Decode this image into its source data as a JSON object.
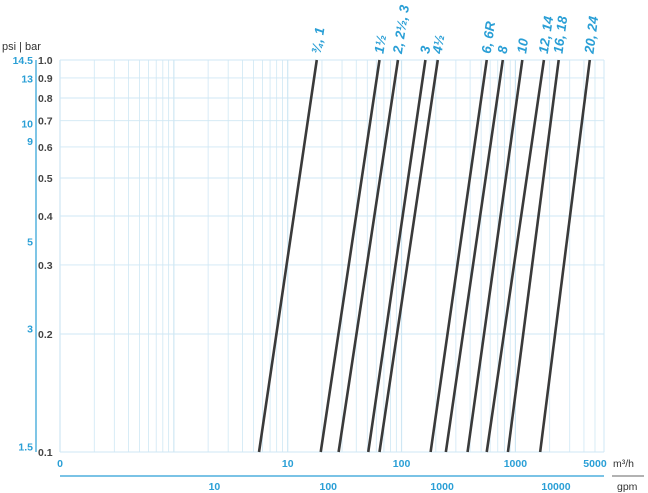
{
  "chart_data": {
    "type": "line",
    "title": "",
    "axis_corner_label": "psi | bar",
    "y_scale": "log",
    "x_scale": "log",
    "ylim_bar": [
      0.1,
      1.0
    ],
    "xlim_m3h": [
      0.1,
      6000
    ],
    "grid": true,
    "colors": {
      "accent": "#2a9fd6",
      "grid": "#cfe7f4",
      "series": "#3a3a3a"
    },
    "y_bar_ticks": [
      {
        "label": "1.0",
        "value": 1.0
      },
      {
        "label": "0.9",
        "value": 0.9
      },
      {
        "label": "0.8",
        "value": 0.8
      },
      {
        "label": "0.7",
        "value": 0.7
      },
      {
        "label": "0.6",
        "value": 0.6
      },
      {
        "label": "0.5",
        "value": 0.5
      },
      {
        "label": "0.4",
        "value": 0.4
      },
      {
        "label": "0.3",
        "value": 0.3
      },
      {
        "label": "0.2",
        "value": 0.2
      },
      {
        "label": "0.1",
        "value": 0.1
      }
    ],
    "y_psi_ticks": [
      {
        "label": "14.5",
        "value": 14.5
      },
      {
        "label": "13",
        "value": 13
      },
      {
        "label": "10",
        "value": 10
      },
      {
        "label": "9",
        "value": 9
      },
      {
        "label": "5",
        "value": 5
      },
      {
        "label": "3",
        "value": 3
      },
      {
        "label": "1.5",
        "value": 1.5
      }
    ],
    "x_m3h_unit": "m³/h",
    "x_m3h_ticks": [
      {
        "label": "0",
        "value": 0.1
      },
      {
        "label": "10",
        "value": 10
      },
      {
        "label": "100",
        "value": 100
      },
      {
        "label": "1000",
        "value": 1000
      },
      {
        "label": "5000",
        "value": 5000
      }
    ],
    "x_gpm_unit": "gpm",
    "x_gpm_ticks": [
      {
        "label": "10",
        "value": 10
      },
      {
        "label": "100",
        "value": 100
      },
      {
        "label": "1000",
        "value": 1000
      },
      {
        "label": "10000",
        "value": 10000
      }
    ],
    "series": [
      {
        "name": "¾, 1",
        "points": [
          {
            "x": 5.6,
            "y": 0.1
          },
          {
            "x": 18,
            "y": 1.0
          }
        ]
      },
      {
        "name": "1½",
        "points": [
          {
            "x": 19.5,
            "y": 0.1
          },
          {
            "x": 64,
            "y": 1.0
          }
        ]
      },
      {
        "name": "2, 2½, 3",
        "points": [
          {
            "x": 28,
            "y": 0.1
          },
          {
            "x": 93,
            "y": 1.0
          }
        ]
      },
      {
        "name": "3",
        "points": [
          {
            "x": 51,
            "y": 0.1
          },
          {
            "x": 162,
            "y": 1.0
          }
        ]
      },
      {
        "name": "4½",
        "points": [
          {
            "x": 64,
            "y": 0.1
          },
          {
            "x": 208,
            "y": 1.0
          }
        ]
      },
      {
        "name": "6, 6R",
        "points": [
          {
            "x": 180,
            "y": 0.1
          },
          {
            "x": 560,
            "y": 1.0
          }
        ]
      },
      {
        "name": "8",
        "points": [
          {
            "x": 245,
            "y": 0.1
          },
          {
            "x": 775,
            "y": 1.0
          }
        ]
      },
      {
        "name": "10",
        "points": [
          {
            "x": 380,
            "y": 0.1
          },
          {
            "x": 1150,
            "y": 1.0
          }
        ]
      },
      {
        "name": "12, 14",
        "points": [
          {
            "x": 560,
            "y": 0.1
          },
          {
            "x": 1780,
            "y": 1.0
          }
        ]
      },
      {
        "name": "16, 18",
        "points": [
          {
            "x": 860,
            "y": 0.1
          },
          {
            "x": 2400,
            "y": 1.0
          }
        ]
      },
      {
        "name": "20, 24",
        "points": [
          {
            "x": 1650,
            "y": 0.1
          },
          {
            "x": 4500,
            "y": 1.0
          }
        ]
      }
    ]
  }
}
